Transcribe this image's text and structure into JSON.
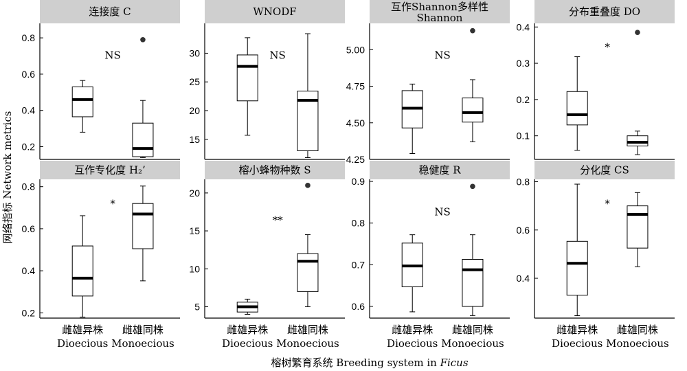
{
  "figure": {
    "ylabel": "网络指标 Network metrics",
    "xlabel_prefix": "榕树繁育系统 Breeding system in ",
    "xlabel_italic": "Ficus"
  },
  "chart_data": [
    {
      "type": "boxplot",
      "title": "连接度 C",
      "categories": [
        "雌雄异株 Dioecious",
        "雌雄同株 Monoecious"
      ],
      "ylim": [
        0.13,
        0.88
      ],
      "yticks": [
        0.2,
        0.4,
        0.6,
        0.8
      ],
      "significance": "NS",
      "boxes": [
        {
          "whisker_low": 0.28,
          "q1": 0.365,
          "median": 0.46,
          "q3": 0.53,
          "whisker_high": 0.565,
          "outliers": []
        },
        {
          "whisker_low": 0.14,
          "q1": 0.145,
          "median": 0.19,
          "q3": 0.33,
          "whisker_high": 0.455,
          "outliers": [
            0.79
          ]
        }
      ]
    },
    {
      "type": "boxplot",
      "title": "WNODF",
      "categories": [
        "雌雄异株 Dioecious",
        "雌雄同株 Monoecious"
      ],
      "ylim": [
        11.5,
        35.2
      ],
      "yticks": [
        15,
        20,
        25,
        30
      ],
      "significance": "NS",
      "boxes": [
        {
          "whisker_low": 15.7,
          "q1": 21.7,
          "median": 27.7,
          "q3": 29.7,
          "whisker_high": 32.7,
          "outliers": []
        },
        {
          "whisker_low": 11.8,
          "q1": 13.0,
          "median": 21.8,
          "q3": 23.4,
          "whisker_high": 33.4,
          "outliers": []
        }
      ]
    },
    {
      "type": "boxplot",
      "title": "互作Shannon多样性",
      "title2": "Shannon",
      "categories": [
        "雌雄异株 Dioecious",
        "雌雄同株 Monoecious"
      ],
      "ylim": [
        4.25,
        5.18
      ],
      "yticks": [
        4.25,
        4.5,
        4.75,
        5.0
      ],
      "ytick_labels": [
        "4.25",
        "4.50",
        "4.75",
        "5.00"
      ],
      "significance": "NS",
      "boxes": [
        {
          "whisker_low": 4.29,
          "q1": 4.465,
          "median": 4.6,
          "q3": 4.72,
          "whisker_high": 4.765,
          "outliers": []
        },
        {
          "whisker_low": 4.37,
          "q1": 4.505,
          "median": 4.57,
          "q3": 4.67,
          "whisker_high": 4.795,
          "outliers": [
            5.13
          ]
        }
      ]
    },
    {
      "type": "boxplot",
      "title": "分布重叠度 DO",
      "categories": [
        "雌雄异株 Dioecious",
        "雌雄同株 Monoecious"
      ],
      "ylim": [
        0.035,
        0.41
      ],
      "yticks": [
        0.1,
        0.2,
        0.3,
        0.4
      ],
      "significance": "*",
      "boxes": [
        {
          "whisker_low": 0.06,
          "q1": 0.13,
          "median": 0.158,
          "q3": 0.222,
          "whisker_high": 0.318,
          "outliers": []
        },
        {
          "whisker_low": 0.048,
          "q1": 0.072,
          "median": 0.082,
          "q3": 0.1,
          "whisker_high": 0.113,
          "outliers": [
            0.385
          ]
        }
      ]
    },
    {
      "type": "boxplot",
      "title": "互作专化度 H₂’",
      "categories": [
        "雌雄异株 Dioecious",
        "雌雄同株 Monoecious"
      ],
      "ylim": [
        0.175,
        0.835
      ],
      "yticks": [
        0.2,
        0.4,
        0.6,
        0.8
      ],
      "significance": "*",
      "boxes": [
        {
          "whisker_low": 0.18,
          "q1": 0.28,
          "median": 0.365,
          "q3": 0.518,
          "whisker_high": 0.662,
          "outliers": []
        },
        {
          "whisker_low": 0.352,
          "q1": 0.505,
          "median": 0.67,
          "q3": 0.72,
          "whisker_high": 0.803,
          "outliers": []
        }
      ]
    },
    {
      "type": "boxplot",
      "title": "榕小蜂物种数 S",
      "categories": [
        "雌雄异株 Dioecious",
        "雌雄同株 Monoecious"
      ],
      "ylim": [
        3.5,
        21.8
      ],
      "yticks": [
        5,
        10,
        15,
        20
      ],
      "significance": "**",
      "boxes": [
        {
          "whisker_low": 4.0,
          "q1": 4.3,
          "median": 5.0,
          "q3": 5.6,
          "whisker_high": 6.0,
          "outliers": []
        },
        {
          "whisker_low": 5.0,
          "q1": 7.0,
          "median": 11.0,
          "q3": 12.0,
          "whisker_high": 14.5,
          "outliers": [
            21.0
          ]
        }
      ]
    },
    {
      "type": "boxplot",
      "title": "稳健度 R",
      "categories": [
        "雌雄异株 Dioecious",
        "雌雄同株 Monoecious"
      ],
      "ylim": [
        0.572,
        0.905
      ],
      "yticks": [
        0.6,
        0.7,
        0.8,
        0.9
      ],
      "significance": "NS",
      "boxes": [
        {
          "whisker_low": 0.587,
          "q1": 0.647,
          "median": 0.697,
          "q3": 0.752,
          "whisker_high": 0.772,
          "outliers": []
        },
        {
          "whisker_low": 0.578,
          "q1": 0.6,
          "median": 0.688,
          "q3": 0.713,
          "whisker_high": 0.772,
          "outliers": [
            0.888
          ]
        }
      ]
    },
    {
      "type": "boxplot",
      "title": "分化度 CS",
      "categories": [
        "雌雄异株 Dioecious",
        "雌雄同株 Monoecious"
      ],
      "ylim": [
        0.235,
        0.81
      ],
      "yticks": [
        0.4,
        0.6,
        0.8
      ],
      "significance": "*",
      "boxes": [
        {
          "whisker_low": 0.245,
          "q1": 0.33,
          "median": 0.462,
          "q3": 0.553,
          "whisker_high": 0.79,
          "outliers": []
        },
        {
          "whisker_low": 0.448,
          "q1": 0.525,
          "median": 0.665,
          "q3": 0.7,
          "whisker_high": 0.755,
          "outliers": []
        }
      ]
    }
  ]
}
